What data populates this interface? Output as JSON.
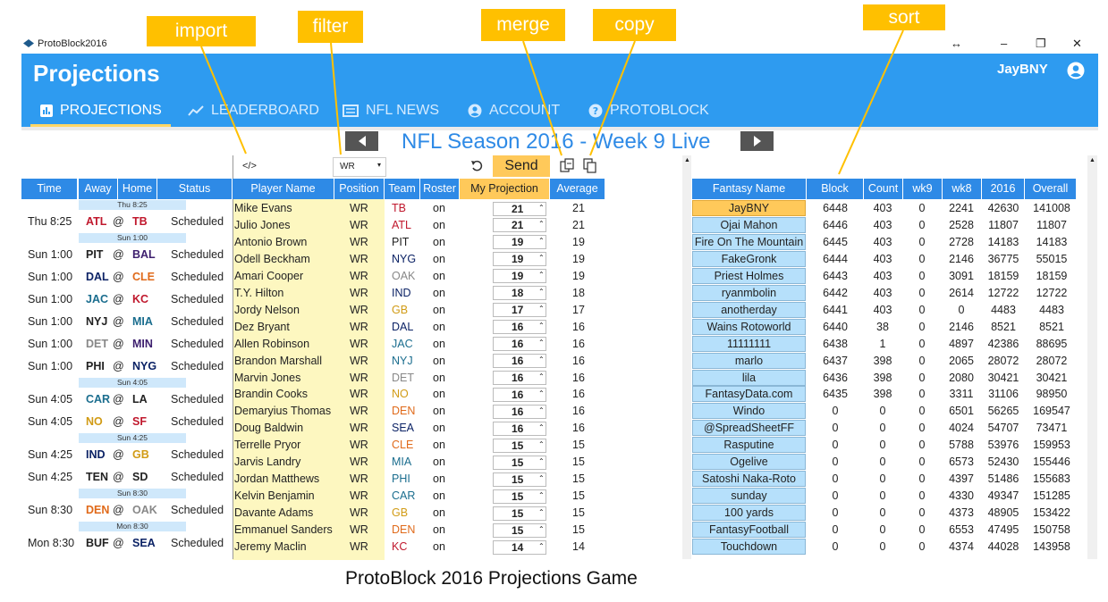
{
  "window": {
    "title": "ProtoBlock2016",
    "controls": [
      "↔",
      "–",
      "❐",
      "✕"
    ]
  },
  "app": {
    "title": "Projections",
    "user": "JayBNY"
  },
  "nav": [
    {
      "label": "PROJECTIONS",
      "icon": "bar-chart-icon",
      "active": true
    },
    {
      "label": "LEADERBOARD",
      "icon": "trend-icon",
      "active": false
    },
    {
      "label": "NFL NEWS",
      "icon": "news-icon",
      "active": false
    },
    {
      "label": "ACCOUNT",
      "icon": "account-icon",
      "active": false
    },
    {
      "label": "PROTOBLOCK",
      "icon": "help-icon",
      "active": false
    }
  ],
  "week_title": "NFL Season 2016 - Week 9 Live",
  "toolbar": {
    "import_symbol": "</>",
    "position_filter": "WR",
    "send_label": "Send"
  },
  "callouts": {
    "import": "import",
    "filter": "filter",
    "merge": "merge",
    "copy": "copy",
    "sort": "sort"
  },
  "caption": "ProtoBlock 2016 Projections Game",
  "schedule_headers": [
    "Time",
    "Away",
    "Home",
    "Status"
  ],
  "schedule": [
    {
      "sep": "Thu 8:25"
    },
    {
      "time": "Thu 8:25",
      "away": "ATL",
      "home": "TB",
      "status": "Scheduled",
      "ac": "t-red",
      "hc": "t-red"
    },
    {
      "sep": "Sun 1:00"
    },
    {
      "time": "Sun 1:00",
      "away": "PIT",
      "home": "BAL",
      "status": "Scheduled",
      "ac": "",
      "hc": "t-purple"
    },
    {
      "time": "Sun 1:00",
      "away": "DAL",
      "home": "CLE",
      "status": "Scheduled",
      "ac": "t-navy",
      "hc": "t-orange"
    },
    {
      "time": "Sun 1:00",
      "away": "JAC",
      "home": "KC",
      "status": "Scheduled",
      "ac": "t-teal",
      "hc": "t-red"
    },
    {
      "time": "Sun 1:00",
      "away": "NYJ",
      "home": "MIA",
      "status": "Scheduled",
      "ac": "",
      "hc": "t-teal"
    },
    {
      "time": "Sun 1:00",
      "away": "DET",
      "home": "MIN",
      "status": "Scheduled",
      "ac": "t-gray",
      "hc": "t-purple"
    },
    {
      "time": "Sun 1:00",
      "away": "PHI",
      "home": "NYG",
      "status": "Scheduled",
      "ac": "",
      "hc": "t-navy"
    },
    {
      "sep": "Sun 4:05"
    },
    {
      "time": "Sun 4:05",
      "away": "CAR",
      "home": "LA",
      "status": "Scheduled",
      "ac": "t-teal",
      "hc": ""
    },
    {
      "time": "Sun 4:05",
      "away": "NO",
      "home": "SF",
      "status": "Scheduled",
      "ac": "t-gold",
      "hc": "t-red"
    },
    {
      "sep": "Sun 4:25"
    },
    {
      "time": "Sun 4:25",
      "away": "IND",
      "home": "GB",
      "status": "Scheduled",
      "ac": "t-navy",
      "hc": "t-gold"
    },
    {
      "time": "Sun 4:25",
      "away": "TEN",
      "home": "SD",
      "status": "Scheduled",
      "ac": "",
      "hc": ""
    },
    {
      "sep": "Sun 8:30"
    },
    {
      "time": "Sun 8:30",
      "away": "DEN",
      "home": "OAK",
      "status": "Scheduled",
      "ac": "t-orange",
      "hc": "t-gray"
    },
    {
      "sep": "Mon 8:30"
    },
    {
      "time": "Mon 8:30",
      "away": "BUF",
      "home": "SEA",
      "status": "Scheduled",
      "ac": "",
      "hc": "t-navy"
    }
  ],
  "at_symbol": "@",
  "player_headers": [
    "Player Name",
    "Position",
    "Team",
    "Roster",
    "My Projection",
    "Average"
  ],
  "players": [
    {
      "name": "Mike Evans",
      "pos": "WR",
      "team": "TB",
      "tc": "t-red",
      "roster": "on",
      "proj": "21",
      "avg": "21"
    },
    {
      "name": "Julio Jones",
      "pos": "WR",
      "team": "ATL",
      "tc": "t-red",
      "roster": "on",
      "proj": "21",
      "avg": "21"
    },
    {
      "name": "Antonio Brown",
      "pos": "WR",
      "team": "PIT",
      "tc": "",
      "roster": "on",
      "proj": "19",
      "avg": "19"
    },
    {
      "name": "Odell Beckham",
      "pos": "WR",
      "team": "NYG",
      "tc": "t-navy",
      "roster": "on",
      "proj": "19",
      "avg": "19"
    },
    {
      "name": "Amari Cooper",
      "pos": "WR",
      "team": "OAK",
      "tc": "t-gray",
      "roster": "on",
      "proj": "19",
      "avg": "19"
    },
    {
      "name": "T.Y. Hilton",
      "pos": "WR",
      "team": "IND",
      "tc": "t-navy",
      "roster": "on",
      "proj": "18",
      "avg": "18"
    },
    {
      "name": "Jordy Nelson",
      "pos": "WR",
      "team": "GB",
      "tc": "t-gold",
      "roster": "on",
      "proj": "17",
      "avg": "17"
    },
    {
      "name": "Dez Bryant",
      "pos": "WR",
      "team": "DAL",
      "tc": "t-navy",
      "roster": "on",
      "proj": "16",
      "avg": "16"
    },
    {
      "name": "Allen Robinson",
      "pos": "WR",
      "team": "JAC",
      "tc": "t-teal",
      "roster": "on",
      "proj": "16",
      "avg": "16"
    },
    {
      "name": "Brandon Marshall",
      "pos": "WR",
      "team": "NYJ",
      "tc": "t-teal",
      "roster": "on",
      "proj": "16",
      "avg": "16"
    },
    {
      "name": "Marvin Jones",
      "pos": "WR",
      "team": "DET",
      "tc": "t-gray",
      "roster": "on",
      "proj": "16",
      "avg": "16"
    },
    {
      "name": "Brandin Cooks",
      "pos": "WR",
      "team": "NO",
      "tc": "t-gold",
      "roster": "on",
      "proj": "16",
      "avg": "16"
    },
    {
      "name": "Demaryius Thomas",
      "pos": "WR",
      "team": "DEN",
      "tc": "t-orange",
      "roster": "on",
      "proj": "16",
      "avg": "16"
    },
    {
      "name": "Doug Baldwin",
      "pos": "WR",
      "team": "SEA",
      "tc": "t-navy",
      "roster": "on",
      "proj": "16",
      "avg": "16"
    },
    {
      "name": "Terrelle Pryor",
      "pos": "WR",
      "team": "CLE",
      "tc": "t-orange",
      "roster": "on",
      "proj": "15",
      "avg": "15"
    },
    {
      "name": "Jarvis Landry",
      "pos": "WR",
      "team": "MIA",
      "tc": "t-teal",
      "roster": "on",
      "proj": "15",
      "avg": "15"
    },
    {
      "name": "Jordan Matthews",
      "pos": "WR",
      "team": "PHI",
      "tc": "t-teal",
      "roster": "on",
      "proj": "15",
      "avg": "15"
    },
    {
      "name": "Kelvin Benjamin",
      "pos": "WR",
      "team": "CAR",
      "tc": "t-teal",
      "roster": "on",
      "proj": "15",
      "avg": "15"
    },
    {
      "name": "Davante Adams",
      "pos": "WR",
      "team": "GB",
      "tc": "t-gold",
      "roster": "on",
      "proj": "15",
      "avg": "15"
    },
    {
      "name": "Emmanuel Sanders",
      "pos": "WR",
      "team": "DEN",
      "tc": "t-orange",
      "roster": "on",
      "proj": "15",
      "avg": "15"
    },
    {
      "name": "Jeremy Maclin",
      "pos": "WR",
      "team": "KC",
      "tc": "t-red",
      "roster": "on",
      "proj": "14",
      "avg": "14"
    }
  ],
  "fantasy_headers": [
    "Fantasy Name",
    "Block",
    "Count",
    "wk9",
    "wk8",
    "2016",
    "Overall"
  ],
  "fantasy": [
    {
      "name": "JayBNY",
      "me": true,
      "block": "6448",
      "count": "403",
      "wk9": "0",
      "wk8": "2241",
      "y2016": "42630",
      "overall": "141008"
    },
    {
      "name": "Ojai Mahon",
      "block": "6446",
      "count": "403",
      "wk9": "0",
      "wk8": "2528",
      "y2016": "11807",
      "overall": "11807"
    },
    {
      "name": "Fire On The Mountain",
      "block": "6445",
      "count": "403",
      "wk9": "0",
      "wk8": "2728",
      "y2016": "14183",
      "overall": "14183"
    },
    {
      "name": "FakeGronk",
      "block": "6444",
      "count": "403",
      "wk9": "0",
      "wk8": "2146",
      "y2016": "36775",
      "overall": "55015"
    },
    {
      "name": "Priest Holmes",
      "block": "6443",
      "count": "403",
      "wk9": "0",
      "wk8": "3091",
      "y2016": "18159",
      "overall": "18159"
    },
    {
      "name": "ryanmbolin",
      "block": "6442",
      "count": "403",
      "wk9": "0",
      "wk8": "2614",
      "y2016": "12722",
      "overall": "12722"
    },
    {
      "name": "anotherday",
      "block": "6441",
      "count": "403",
      "wk9": "0",
      "wk8": "0",
      "y2016": "4483",
      "overall": "4483"
    },
    {
      "name": "Wains Rotoworld",
      "block": "6440",
      "count": "38",
      "wk9": "0",
      "wk8": "2146",
      "y2016": "8521",
      "overall": "8521"
    },
    {
      "name": "11111111",
      "block": "6438",
      "count": "1",
      "wk9": "0",
      "wk8": "4897",
      "y2016": "42386",
      "overall": "88695"
    },
    {
      "name": "marlo",
      "block": "6437",
      "count": "398",
      "wk9": "0",
      "wk8": "2065",
      "y2016": "28072",
      "overall": "28072"
    },
    {
      "name": "lila",
      "block": "6436",
      "count": "398",
      "wk9": "0",
      "wk8": "2080",
      "y2016": "30421",
      "overall": "30421"
    },
    {
      "name": "FantasyData.com",
      "block": "6435",
      "count": "398",
      "wk9": "0",
      "wk8": "3311",
      "y2016": "31106",
      "overall": "98950"
    },
    {
      "name": "Windo",
      "block": "0",
      "count": "0",
      "wk9": "0",
      "wk8": "6501",
      "y2016": "56265",
      "overall": "169547"
    },
    {
      "name": "@SpreadSheetFF",
      "block": "0",
      "count": "0",
      "wk9": "0",
      "wk8": "4024",
      "y2016": "54707",
      "overall": "73471"
    },
    {
      "name": "Rasputine",
      "block": "0",
      "count": "0",
      "wk9": "0",
      "wk8": "5788",
      "y2016": "53976",
      "overall": "159953"
    },
    {
      "name": "Ogelive",
      "block": "0",
      "count": "0",
      "wk9": "0",
      "wk8": "6573",
      "y2016": "52430",
      "overall": "155446"
    },
    {
      "name": "Satoshi Naka-Roto",
      "block": "0",
      "count": "0",
      "wk9": "0",
      "wk8": "4397",
      "y2016": "51486",
      "overall": "155683"
    },
    {
      "name": "sunday",
      "block": "0",
      "count": "0",
      "wk9": "0",
      "wk8": "4330",
      "y2016": "49347",
      "overall": "151285"
    },
    {
      "name": "100 yards",
      "block": "0",
      "count": "0",
      "wk9": "0",
      "wk8": "4373",
      "y2016": "48905",
      "overall": "153422"
    },
    {
      "name": "FantasyFootball",
      "block": "0",
      "count": "0",
      "wk9": "0",
      "wk8": "6553",
      "y2016": "47495",
      "overall": "150758"
    },
    {
      "name": "Touchdown",
      "block": "0",
      "count": "0",
      "wk9": "0",
      "wk8": "4374",
      "y2016": "44028",
      "overall": "143958"
    }
  ]
}
